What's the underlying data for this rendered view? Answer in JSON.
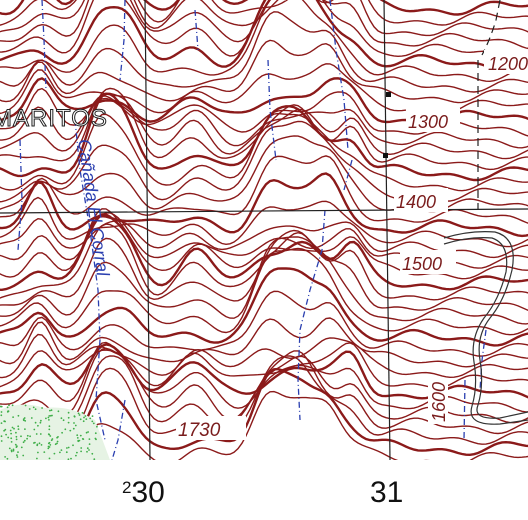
{
  "place_name": "MARITOS",
  "stream_name": "Cañada El Corral",
  "contour_labels": [
    "1200",
    "1300",
    "1400",
    "1500",
    "1600",
    "1730"
  ],
  "grid": {
    "easting_prefix": "2",
    "easting_left": "30",
    "easting_right": "31"
  },
  "colors": {
    "contour": "#8b1a1a",
    "stream": "#2a3fb0",
    "grid": "#222222",
    "vegetation": "#3fae49",
    "road": "#333333"
  }
}
